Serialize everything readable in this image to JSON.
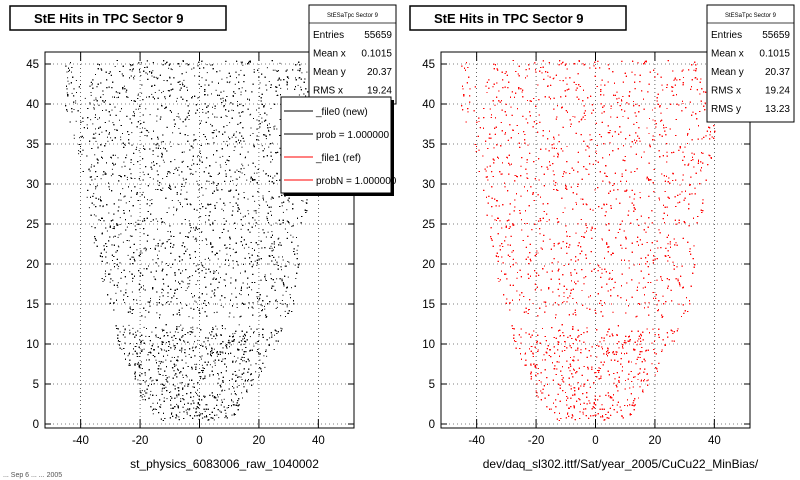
{
  "footer_note": "... Sep 6 ... ... 2005",
  "chart_data": [
    {
      "type": "scatter",
      "title": "StE Hits in TPC Sector 9",
      "xlabel": "st_physics_6083006_raw_1040002",
      "ylabel": "",
      "xlim": [
        -52,
        52
      ],
      "ylim": [
        -0.5,
        46.5
      ],
      "xticks": [
        -40,
        -20,
        0,
        20,
        40
      ],
      "yticks": [
        0,
        5,
        10,
        15,
        20,
        25,
        30,
        35,
        40,
        45
      ],
      "grid": true,
      "marker_color": "#000000",
      "outline": [
        [
          -45,
          45.5
        ],
        [
          -46,
          41
        ],
        [
          -44,
          38
        ],
        [
          -41,
          34
        ],
        [
          -39,
          30
        ],
        [
          -37,
          25
        ],
        [
          -34,
          20
        ],
        [
          -33,
          18
        ],
        [
          -32,
          15
        ],
        [
          -30,
          13.5
        ],
        [
          -29,
          12.5
        ],
        [
          -27,
          9.5
        ],
        [
          -22,
          6
        ],
        [
          -20,
          3
        ],
        [
          -14,
          0.5
        ],
        [
          4,
          0.5
        ],
        [
          12,
          1
        ],
        [
          14,
          3
        ],
        [
          20,
          6
        ],
        [
          25,
          9
        ],
        [
          29,
          12.5
        ],
        [
          30,
          13.5
        ],
        [
          32,
          15
        ],
        [
          33,
          18
        ],
        [
          34,
          20
        ],
        [
          35,
          25
        ],
        [
          38,
          30
        ],
        [
          40,
          34
        ],
        [
          40,
          38
        ],
        [
          38,
          41
        ],
        [
          36,
          45.5
        ]
      ],
      "empty_band": [
        13.3,
        12.5
      ],
      "stats": {
        "title": "StESaTpc Sector 9",
        "rows": [
          {
            "label": "Entries",
            "value": "55659"
          },
          {
            "label": "Mean x",
            "value": "0.1015"
          },
          {
            "label": "Mean y",
            "value": "20.37"
          },
          {
            "label": "RMS x",
            "value": "19.24"
          }
        ]
      },
      "legend": {
        "placement": "top-right",
        "entries": [
          {
            "label": "_file0 (new)",
            "color": "#000000"
          },
          {
            "label": "prob = 1.000000",
            "color": "#000000"
          },
          {
            "label": "_file1 (ref)",
            "color": "#ff0000"
          },
          {
            "label": "probN = 1.000000",
            "color": "#ff0000"
          }
        ]
      }
    },
    {
      "type": "scatter",
      "title": "StE Hits in TPC Sector 9",
      "xlabel": "dev/daq_sl302.ittf/Sat/year_2005/CuCu22_MinBias/",
      "ylabel": "",
      "xlim": [
        -52,
        52
      ],
      "ylim": [
        -0.5,
        46.5
      ],
      "xticks": [
        -40,
        -20,
        0,
        20,
        40
      ],
      "yticks": [
        0,
        5,
        10,
        15,
        20,
        25,
        30,
        35,
        40,
        45
      ],
      "grid": true,
      "marker_color": "#ff0000",
      "outline": [
        [
          -45,
          45.5
        ],
        [
          -46,
          41
        ],
        [
          -44,
          38
        ],
        [
          -41,
          34
        ],
        [
          -39,
          30
        ],
        [
          -37,
          25
        ],
        [
          -34,
          20
        ],
        [
          -33,
          18
        ],
        [
          -32,
          15
        ],
        [
          -30,
          13.5
        ],
        [
          -29,
          12.5
        ],
        [
          -27,
          9.5
        ],
        [
          -22,
          6
        ],
        [
          -20,
          3
        ],
        [
          -14,
          0.5
        ],
        [
          4,
          0.5
        ],
        [
          12,
          1
        ],
        [
          14,
          3
        ],
        [
          20,
          6
        ],
        [
          25,
          9
        ],
        [
          29,
          12.5
        ],
        [
          30,
          13.5
        ],
        [
          32,
          15
        ],
        [
          33,
          18
        ],
        [
          34,
          20
        ],
        [
          35,
          25
        ],
        [
          38,
          30
        ],
        [
          40,
          34
        ],
        [
          40,
          38
        ],
        [
          38,
          41
        ],
        [
          36,
          45.5
        ]
      ],
      "empty_band": [
        13.3,
        12.5
      ],
      "stats": {
        "title": "StESaTpc Sector 9",
        "rows": [
          {
            "label": "Entries",
            "value": "55659"
          },
          {
            "label": "Mean x",
            "value": "0.1015"
          },
          {
            "label": "Mean y",
            "value": "20.37"
          },
          {
            "label": "RMS x",
            "value": "19.24"
          },
          {
            "label": "RMS y",
            "value": "13.23"
          }
        ]
      }
    }
  ]
}
